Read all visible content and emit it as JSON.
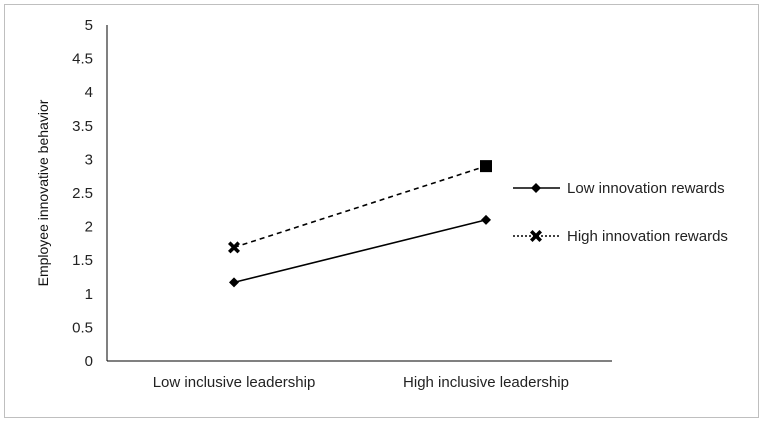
{
  "chart_data": {
    "type": "line",
    "title": "",
    "xlabel": "",
    "ylabel": "Employee innovative behavior",
    "categories": [
      "Low inclusive leadership",
      "High inclusive leadership"
    ],
    "ylim": [
      0,
      5
    ],
    "yticks": [
      0,
      0.5,
      1,
      1.5,
      2,
      2.5,
      3,
      3.5,
      4,
      4.5,
      5
    ],
    "grid": false,
    "legend_position": "right",
    "series": [
      {
        "name": "Low innovation rewards",
        "values": [
          1.17,
          2.1
        ],
        "line_style": "solid",
        "marker": "diamond",
        "color": "#000000"
      },
      {
        "name": "High innovation rewards",
        "values": [
          1.69,
          2.9
        ],
        "line_style": "dashed",
        "marker": "x",
        "color": "#000000"
      }
    ]
  }
}
